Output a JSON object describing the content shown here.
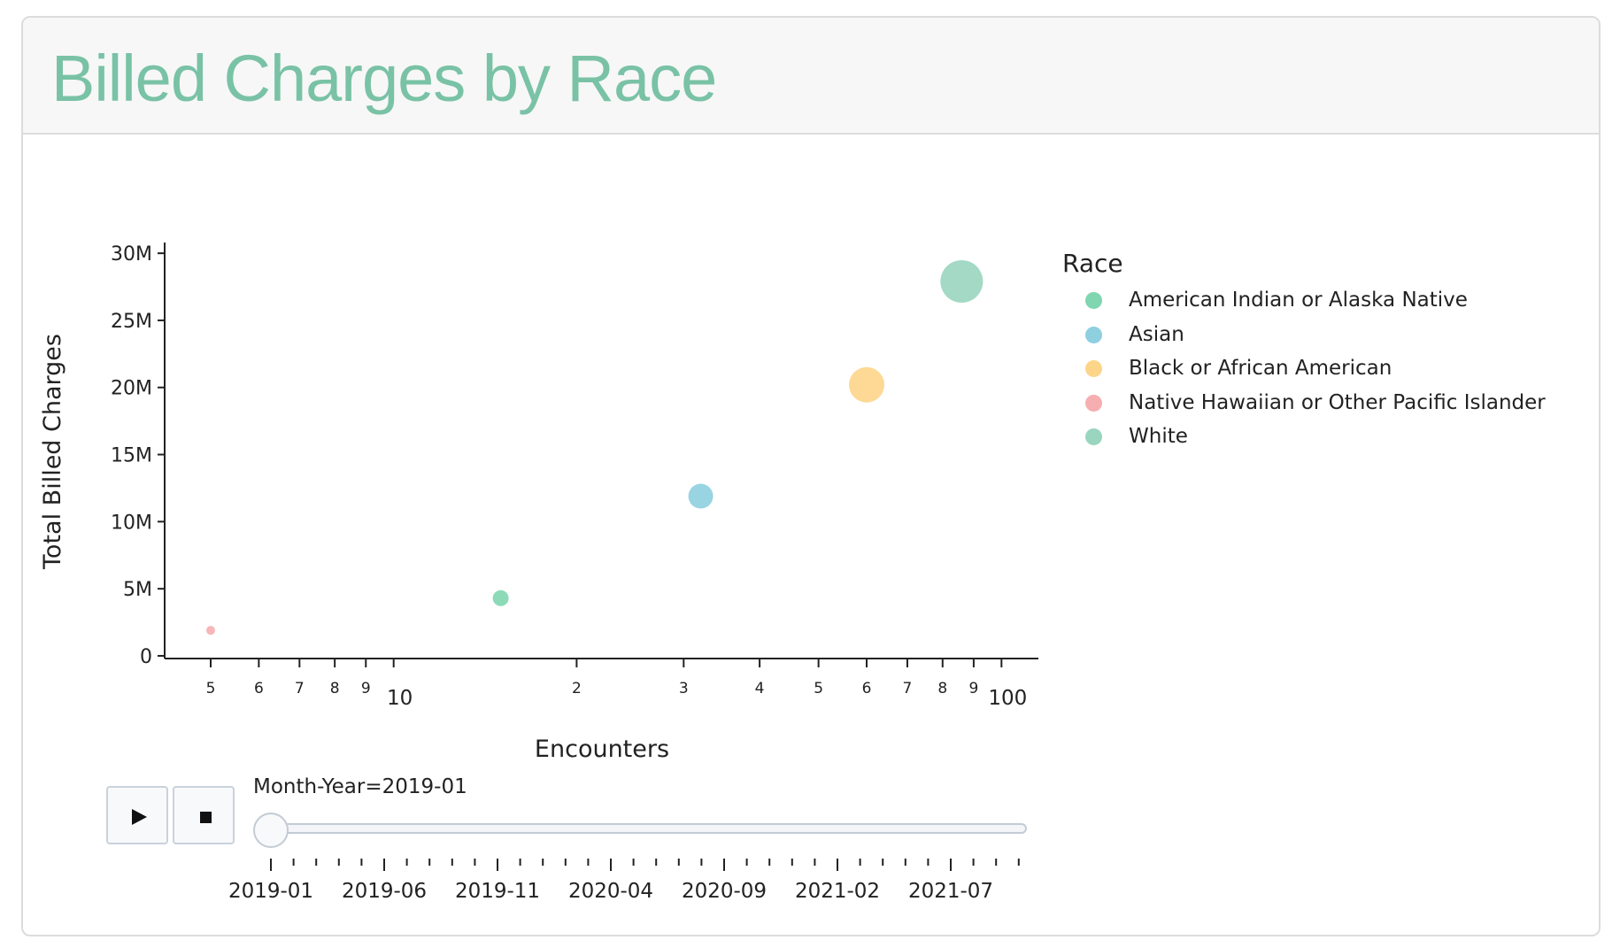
{
  "title": "Billed Charges by Race",
  "chart_data": {
    "type": "scatter",
    "xlabel": "Encounters",
    "ylabel": "Total Billed Charges",
    "x_scale": "log",
    "xlim": [
      4.2,
      115
    ],
    "ylim": [
      -200000,
      30800000
    ],
    "x_ticks": [
      {
        "value": 5,
        "label": "5",
        "major": false
      },
      {
        "value": 6,
        "label": "6",
        "major": false
      },
      {
        "value": 7,
        "label": "7",
        "major": false
      },
      {
        "value": 8,
        "label": "8",
        "major": false
      },
      {
        "value": 9,
        "label": "9",
        "major": false
      },
      {
        "value": 10,
        "label": "10",
        "major": true
      },
      {
        "value": 20,
        "label": "2",
        "major": false
      },
      {
        "value": 30,
        "label": "3",
        "major": false
      },
      {
        "value": 40,
        "label": "4",
        "major": false
      },
      {
        "value": 50,
        "label": "5",
        "major": false
      },
      {
        "value": 60,
        "label": "6",
        "major": false
      },
      {
        "value": 70,
        "label": "7",
        "major": false
      },
      {
        "value": 80,
        "label": "8",
        "major": false
      },
      {
        "value": 90,
        "label": "9",
        "major": false
      },
      {
        "value": 100,
        "label": "100",
        "major": true
      }
    ],
    "y_ticks": [
      {
        "value": 0,
        "label": "0"
      },
      {
        "value": 5000000,
        "label": "5M"
      },
      {
        "value": 10000000,
        "label": "10M"
      },
      {
        "value": 15000000,
        "label": "15M"
      },
      {
        "value": 20000000,
        "label": "20M"
      },
      {
        "value": 25000000,
        "label": "25M"
      },
      {
        "value": 30000000,
        "label": "30M"
      }
    ],
    "grid": false,
    "legend_title": "Race",
    "legend_position": "right",
    "series": [
      {
        "name": "American Indian or Alaska Native",
        "color": "#7fd6b0",
        "x": 15,
        "y": 4300000,
        "size": 9
      },
      {
        "name": "Asian",
        "color": "#8ecfe0",
        "x": 32,
        "y": 11900000,
        "size": 14
      },
      {
        "name": "Black or African American",
        "color": "#fdd589",
        "x": 60,
        "y": 20200000,
        "size": 20
      },
      {
        "name": "Native Hawaiian or Other Pacific Islander",
        "color": "#f6aeb0",
        "x": 5,
        "y": 1900000,
        "size": 5
      },
      {
        "name": "White",
        "color": "#99d5bf",
        "x": 86,
        "y": 27900000,
        "size": 24
      }
    ]
  },
  "slider": {
    "label": "Month-Year=2019-01",
    "current_index": 0,
    "step_count": 34,
    "labels": [
      "2019-01",
      "2019-06",
      "2019-11",
      "2020-04",
      "2020-09",
      "2021-02",
      "2021-07"
    ]
  },
  "controls": {
    "play_icon": "play-icon",
    "stop_icon": "stop-icon"
  }
}
